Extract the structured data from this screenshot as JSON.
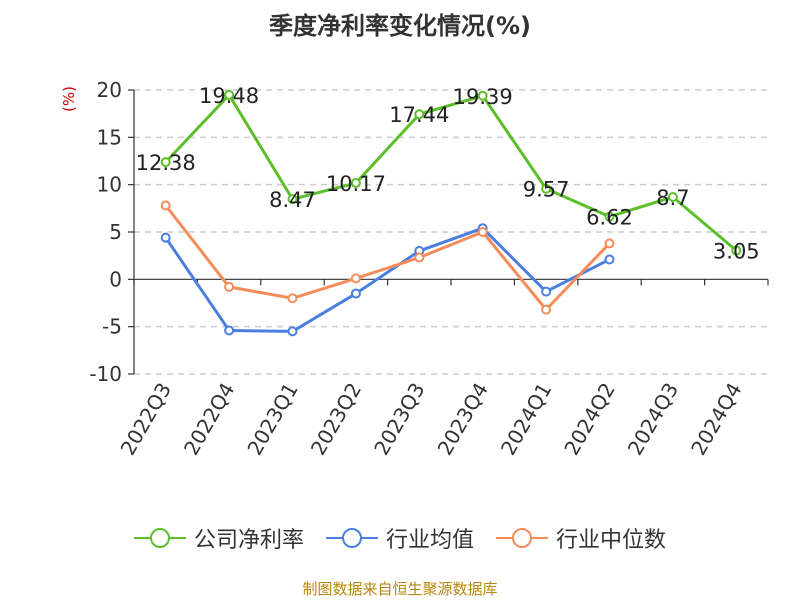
{
  "footer": "制图数据来自恒生聚源数据库",
  "chart_data": {
    "type": "line",
    "title": "季度净利率变化情况(%)",
    "ylabel": "(%)",
    "xlabel": "",
    "ylim": [
      -10,
      20
    ],
    "yticks": [
      20,
      15,
      10,
      5,
      0,
      -5,
      -10
    ],
    "grid": true,
    "legend_position": "bottom",
    "categories": [
      "2022Q3",
      "2022Q4",
      "2023Q1",
      "2023Q2",
      "2023Q3",
      "2023Q4",
      "2024Q1",
      "2024Q2",
      "2024Q3",
      "2024Q4"
    ],
    "series": [
      {
        "name": "公司净利率",
        "color": "#5cbf2a",
        "values": [
          12.38,
          19.48,
          8.47,
          10.17,
          17.44,
          19.39,
          9.57,
          6.62,
          8.7,
          3.05
        ],
        "labels": [
          "12.38",
          "19.48",
          "8.47",
          "10.17",
          "17.44",
          "19.39",
          "9.57",
          "6.62",
          "8.7",
          "3.05"
        ]
      },
      {
        "name": "行业均值",
        "color": "#4a7fe0",
        "values": [
          4.4,
          -5.4,
          -5.5,
          -1.5,
          3.0,
          5.4,
          -1.3,
          2.1,
          null,
          null
        ]
      },
      {
        "name": "行业中位数",
        "color": "#f58c5a",
        "values": [
          7.8,
          -0.8,
          -2.0,
          0.1,
          2.3,
          5.0,
          -3.2,
          3.8,
          null,
          null
        ]
      }
    ]
  }
}
